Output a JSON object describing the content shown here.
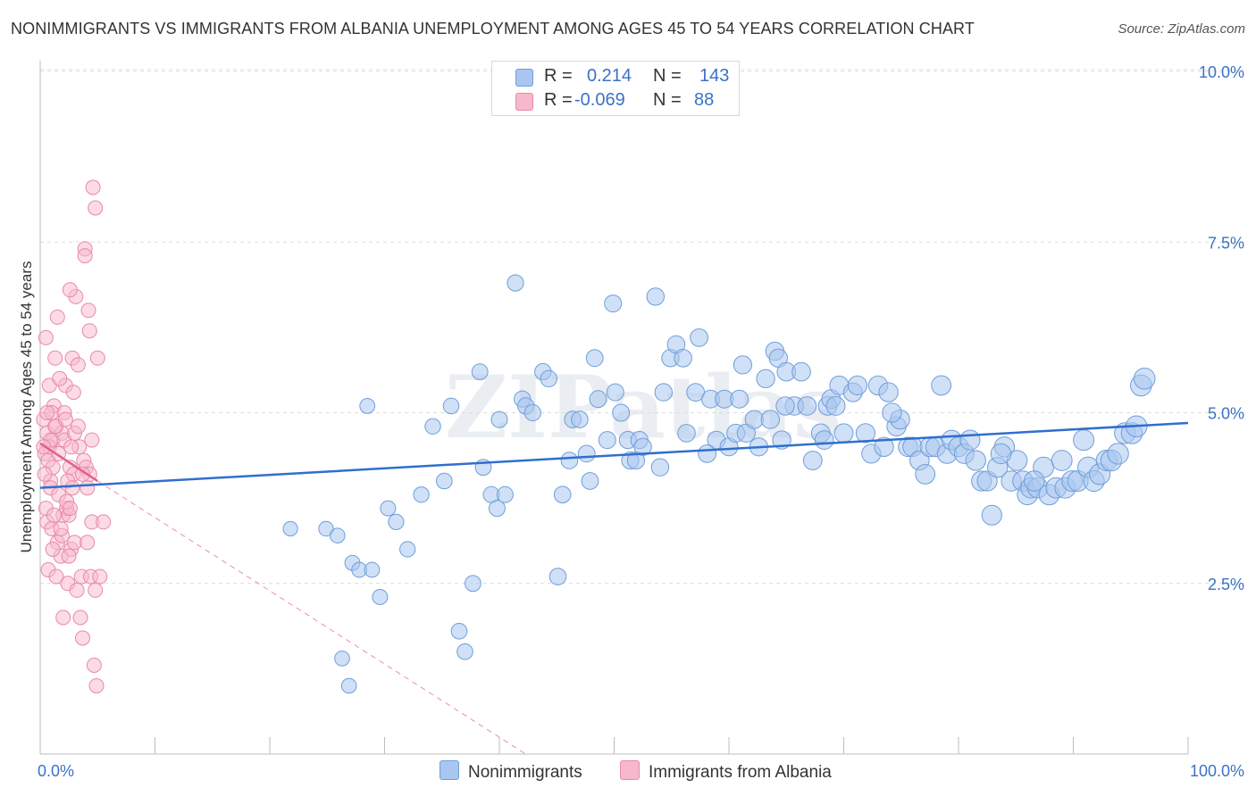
{
  "title": "NONIMMIGRANTS VS IMMIGRANTS FROM ALBANIA UNEMPLOYMENT AMONG AGES 45 TO 54 YEARS CORRELATION CHART",
  "source": "Source: ZipAtlas.com",
  "watermark": "ZIPatlas",
  "legend_top": {
    "rows": [
      {
        "r_label": "R =",
        "r_value": "0.214",
        "n_label": "N =",
        "n_value": "143"
      },
      {
        "r_label": "R =",
        "r_value": "-0.069",
        "n_label": "N =",
        "n_value": "88"
      }
    ]
  },
  "chart_data": {
    "type": "scatter",
    "title": "NONIMMIGRANTS VS IMMIGRANTS FROM ALBANIA UNEMPLOYMENT AMONG AGES 45 TO 54 YEARS CORRELATION CHART",
    "xlabel": "",
    "ylabel": "Unemployment Among Ages 45 to 54 years",
    "xlim": [
      0,
      100
    ],
    "ylim": [
      0,
      10.5
    ],
    "x_tick_labels": [
      "0.0%",
      "100.0%"
    ],
    "y_ticks": [
      2.5,
      5.0,
      7.5,
      10.0
    ],
    "y_tick_labels": [
      "2.5%",
      "5.0%",
      "7.5%",
      "10.0%"
    ],
    "grid": true,
    "colors": {
      "nonimmigrants_fill": "#a9c6f0",
      "nonimmigrants_stroke": "#6f9ed8",
      "nonimmigrants_line": "#2f6fce",
      "albania_fill": "#f7b8cb",
      "albania_stroke": "#e889a8",
      "albania_line": "#e0608a",
      "tick_label": "#3a72c6"
    },
    "series": [
      {
        "name": "Nonimmigrants",
        "trend": {
          "x": [
            0,
            100
          ],
          "y": [
            3.9,
            4.85
          ]
        },
        "points": [
          [
            21.8,
            3.3
          ],
          [
            24.9,
            3.3
          ],
          [
            25.9,
            3.2
          ],
          [
            26.3,
            1.4
          ],
          [
            26.9,
            1.0
          ],
          [
            27.2,
            2.8
          ],
          [
            27.8,
            2.7
          ],
          [
            28.5,
            5.1
          ],
          [
            28.9,
            2.7
          ],
          [
            29.6,
            2.3
          ],
          [
            30.3,
            3.6
          ],
          [
            31.0,
            3.4
          ],
          [
            32.0,
            3.0
          ],
          [
            33.2,
            3.8
          ],
          [
            34.2,
            4.8
          ],
          [
            35.2,
            4.0
          ],
          [
            35.8,
            5.1
          ],
          [
            36.5,
            1.8
          ],
          [
            37.0,
            1.5
          ],
          [
            37.7,
            2.5
          ],
          [
            38.3,
            5.6
          ],
          [
            38.6,
            4.2
          ],
          [
            39.3,
            3.8
          ],
          [
            39.8,
            3.6
          ],
          [
            40.0,
            4.9
          ],
          [
            40.5,
            3.8
          ],
          [
            41.4,
            6.9
          ],
          [
            42.0,
            5.2
          ],
          [
            42.3,
            5.1
          ],
          [
            42.9,
            5.0
          ],
          [
            43.8,
            5.6
          ],
          [
            44.3,
            5.5
          ],
          [
            45.1,
            2.6
          ],
          [
            45.5,
            3.8
          ],
          [
            46.1,
            4.3
          ],
          [
            46.4,
            4.9
          ],
          [
            47.0,
            4.9
          ],
          [
            47.6,
            4.4
          ],
          [
            47.9,
            4.0
          ],
          [
            48.3,
            5.8
          ],
          [
            48.6,
            5.2
          ],
          [
            49.4,
            4.6
          ],
          [
            49.9,
            6.6
          ],
          [
            50.1,
            5.3
          ],
          [
            50.6,
            5.0
          ],
          [
            51.2,
            4.6
          ],
          [
            51.4,
            4.3
          ],
          [
            51.9,
            4.3
          ],
          [
            52.2,
            4.6
          ],
          [
            52.5,
            4.5
          ],
          [
            53.6,
            6.7
          ],
          [
            54.0,
            4.2
          ],
          [
            54.3,
            5.3
          ],
          [
            54.9,
            5.8
          ],
          [
            55.4,
            6.0
          ],
          [
            56.0,
            5.8
          ],
          [
            56.3,
            4.7
          ],
          [
            57.1,
            5.3
          ],
          [
            57.4,
            6.1
          ],
          [
            58.4,
            5.2
          ],
          [
            58.9,
            4.6
          ],
          [
            59.6,
            5.2
          ],
          [
            60.0,
            4.5
          ],
          [
            60.6,
            4.7
          ],
          [
            61.2,
            5.7
          ],
          [
            61.5,
            4.7
          ],
          [
            62.2,
            4.9
          ],
          [
            62.6,
            4.5
          ],
          [
            63.2,
            5.5
          ],
          [
            63.6,
            4.9
          ],
          [
            64.0,
            5.9
          ],
          [
            64.3,
            5.8
          ],
          [
            64.6,
            4.6
          ],
          [
            65.0,
            5.6
          ],
          [
            65.7,
            5.1
          ],
          [
            66.3,
            5.6
          ],
          [
            66.8,
            5.1
          ],
          [
            67.3,
            4.3
          ],
          [
            68.0,
            4.7
          ],
          [
            68.6,
            5.1
          ],
          [
            68.9,
            5.2
          ],
          [
            69.6,
            5.4
          ],
          [
            70.0,
            4.7
          ],
          [
            70.8,
            5.3
          ],
          [
            71.2,
            5.4
          ],
          [
            71.9,
            4.7
          ],
          [
            72.4,
            4.4
          ],
          [
            73.0,
            5.4
          ],
          [
            73.5,
            4.5
          ],
          [
            73.9,
            5.3
          ],
          [
            74.6,
            4.8
          ],
          [
            74.9,
            4.9
          ],
          [
            75.6,
            4.5
          ],
          [
            76.0,
            4.5
          ],
          [
            76.6,
            4.3
          ],
          [
            77.1,
            4.1
          ],
          [
            77.5,
            4.5
          ],
          [
            78.0,
            4.5
          ],
          [
            78.5,
            5.4
          ],
          [
            79.0,
            4.4
          ],
          [
            79.4,
            4.6
          ],
          [
            80.0,
            4.5
          ],
          [
            80.5,
            4.4
          ],
          [
            81.0,
            4.6
          ],
          [
            81.5,
            4.3
          ],
          [
            82.0,
            4.0
          ],
          [
            82.5,
            4.0
          ],
          [
            82.9,
            3.5
          ],
          [
            83.4,
            4.2
          ],
          [
            84.0,
            4.5
          ],
          [
            84.6,
            4.0
          ],
          [
            85.1,
            4.3
          ],
          [
            85.6,
            4.0
          ],
          [
            86.0,
            3.8
          ],
          [
            86.3,
            3.9
          ],
          [
            86.9,
            3.9
          ],
          [
            87.4,
            4.2
          ],
          [
            87.9,
            3.8
          ],
          [
            88.5,
            3.9
          ],
          [
            89.0,
            4.3
          ],
          [
            89.3,
            3.9
          ],
          [
            89.9,
            4.0
          ],
          [
            90.4,
            4.0
          ],
          [
            90.9,
            4.6
          ],
          [
            91.3,
            4.2
          ],
          [
            91.8,
            4.0
          ],
          [
            92.3,
            4.1
          ],
          [
            92.9,
            4.3
          ],
          [
            93.3,
            4.3
          ],
          [
            93.9,
            4.4
          ],
          [
            94.5,
            4.7
          ],
          [
            95.1,
            4.7
          ],
          [
            95.5,
            4.8
          ],
          [
            95.9,
            5.4
          ],
          [
            96.2,
            5.5
          ],
          [
            60.9,
            5.2
          ],
          [
            69.3,
            5.1
          ],
          [
            86.6,
            4.0
          ],
          [
            83.7,
            4.4
          ],
          [
            74.2,
            5.0
          ],
          [
            58.1,
            4.4
          ],
          [
            64.9,
            5.1
          ],
          [
            68.3,
            4.6
          ]
        ]
      },
      {
        "name": "Immigrants from Albania",
        "trend": {
          "x": [
            0,
            5
          ],
          "y": [
            4.55,
            4.0
          ]
        },
        "trend_dashed": {
          "x": [
            5,
            42.3
          ],
          "y": [
            4.0,
            0
          ]
        },
        "points": [
          [
            0.3,
            4.9
          ],
          [
            0.4,
            4.4
          ],
          [
            0.6,
            4.7
          ],
          [
            0.6,
            3.4
          ],
          [
            0.7,
            4.3
          ],
          [
            0.8,
            5.4
          ],
          [
            0.9,
            4.0
          ],
          [
            0.9,
            3.9
          ],
          [
            1.0,
            3.3
          ],
          [
            1.1,
            4.6
          ],
          [
            1.2,
            5.1
          ],
          [
            1.3,
            5.8
          ],
          [
            1.4,
            4.8
          ],
          [
            1.5,
            3.1
          ],
          [
            1.6,
            3.8
          ],
          [
            1.8,
            2.9
          ],
          [
            1.9,
            4.7
          ],
          [
            2.0,
            3.5
          ],
          [
            2.1,
            4.6
          ],
          [
            2.2,
            5.4
          ],
          [
            2.3,
            3.6
          ],
          [
            2.4,
            2.5
          ],
          [
            2.5,
            3.5
          ],
          [
            2.6,
            4.2
          ],
          [
            2.7,
            3.0
          ],
          [
            2.8,
            5.8
          ],
          [
            2.9,
            4.1
          ],
          [
            3.0,
            3.1
          ],
          [
            3.1,
            6.7
          ],
          [
            3.2,
            2.4
          ],
          [
            3.3,
            5.7
          ],
          [
            3.4,
            4.5
          ],
          [
            3.5,
            2.0
          ],
          [
            3.6,
            2.6
          ],
          [
            3.7,
            1.7
          ],
          [
            3.8,
            4.3
          ],
          [
            3.9,
            7.4
          ],
          [
            4.0,
            4.2
          ],
          [
            4.1,
            3.9
          ],
          [
            4.2,
            6.5
          ],
          [
            4.3,
            4.1
          ],
          [
            4.4,
            2.6
          ],
          [
            4.5,
            3.4
          ],
          [
            4.6,
            8.3
          ],
          [
            4.7,
            1.3
          ],
          [
            4.8,
            8.0
          ],
          [
            4.9,
            1.0
          ],
          [
            5.0,
            5.8
          ],
          [
            0.5,
            6.1
          ],
          [
            0.5,
            3.6
          ],
          [
            0.7,
            2.7
          ],
          [
            0.8,
            4.5
          ],
          [
            1.0,
            5.0
          ],
          [
            1.1,
            4.2
          ],
          [
            1.2,
            3.5
          ],
          [
            1.3,
            4.8
          ],
          [
            1.5,
            6.4
          ],
          [
            1.7,
            5.5
          ],
          [
            1.9,
            3.2
          ],
          [
            2.0,
            2.0
          ],
          [
            2.1,
            5.0
          ],
          [
            2.3,
            3.7
          ],
          [
            2.4,
            4.0
          ],
          [
            2.5,
            2.9
          ],
          [
            2.6,
            6.8
          ],
          [
            2.7,
            4.5
          ],
          [
            2.8,
            3.9
          ],
          [
            2.9,
            5.3
          ],
          [
            3.0,
            4.7
          ],
          [
            0.4,
            4.1
          ],
          [
            0.6,
            5.0
          ],
          [
            0.9,
            4.6
          ],
          [
            1.1,
            3.0
          ],
          [
            1.4,
            2.6
          ],
          [
            1.6,
            4.4
          ],
          [
            1.8,
            3.3
          ],
          [
            2.2,
            4.9
          ],
          [
            2.6,
            3.6
          ],
          [
            3.3,
            4.8
          ],
          [
            3.7,
            4.1
          ],
          [
            3.9,
            7.3
          ],
          [
            4.1,
            3.1
          ],
          [
            4.3,
            6.2
          ],
          [
            4.5,
            4.6
          ],
          [
            4.8,
            2.4
          ],
          [
            5.2,
            2.6
          ],
          [
            5.5,
            3.4
          ],
          [
            0.3,
            4.5
          ]
        ]
      }
    ]
  }
}
